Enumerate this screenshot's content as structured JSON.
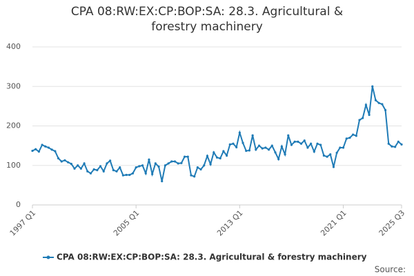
{
  "chart_data": {
    "type": "line",
    "title": "CPA 08:RW:EX:CP:BOP:SA: 28.3. Agricultural & forestry machinery",
    "source": "Source:",
    "categories": [
      "1997 Q1",
      null,
      null,
      null,
      null,
      null,
      null,
      null,
      null,
      null,
      null,
      null,
      null,
      null,
      null,
      null,
      null,
      null,
      null,
      null,
      null,
      null,
      null,
      null,
      null,
      null,
      null,
      null,
      null,
      null,
      null,
      null,
      "2005 Q1",
      null,
      null,
      null,
      null,
      null,
      null,
      null,
      null,
      null,
      null,
      null,
      null,
      null,
      null,
      null,
      null,
      null,
      null,
      null,
      null,
      null,
      null,
      null,
      null,
      null,
      null,
      null,
      null,
      null,
      null,
      null,
      "2013 Q1",
      null,
      null,
      null,
      null,
      null,
      null,
      null,
      null,
      null,
      null,
      null,
      null,
      null,
      null,
      null,
      null,
      null,
      null,
      null,
      null,
      null,
      null,
      null,
      null,
      null,
      null,
      null,
      null,
      null,
      null,
      null,
      "2021 Q1",
      null,
      null,
      null,
      null,
      null,
      null,
      null,
      null,
      null,
      null,
      null,
      null,
      null,
      null,
      null,
      null,
      null,
      "2025 Q3"
    ],
    "series": [
      {
        "name": "CPA 08:RW:EX:CP:BOP:SA: 28.3. Agricultural & forestry machinery",
        "color": "#1f7bb6",
        "values": [
          137,
          141,
          135,
          152,
          148,
          145,
          140,
          136,
          118,
          110,
          113,
          108,
          104,
          92,
          100,
          92,
          105,
          85,
          80,
          90,
          88,
          98,
          85,
          105,
          112,
          88,
          85,
          95,
          75,
          76,
          76,
          80,
          95,
          98,
          100,
          80,
          115,
          78,
          105,
          97,
          60,
          100,
          105,
          110,
          110,
          105,
          106,
          122,
          122,
          75,
          72,
          95,
          90,
          100,
          124,
          103,
          133,
          120,
          118,
          136,
          125,
          153,
          155,
          146,
          183,
          157,
          137,
          138,
          176,
          140,
          150,
          143,
          145,
          140,
          150,
          133,
          116,
          148,
          128,
          176,
          152,
          160,
          160,
          155,
          163,
          145,
          155,
          135,
          155,
          152,
          125,
          122,
          128,
          96,
          132,
          145,
          145,
          168,
          170,
          178,
          175,
          215,
          220,
          253,
          228,
          300,
          265,
          258,
          255,
          240,
          155,
          148,
          147,
          160,
          153
        ]
      }
    ],
    "ylim": [
      0,
      400
    ],
    "yticks": [
      0,
      100,
      200,
      300,
      400
    ],
    "grid": true
  }
}
